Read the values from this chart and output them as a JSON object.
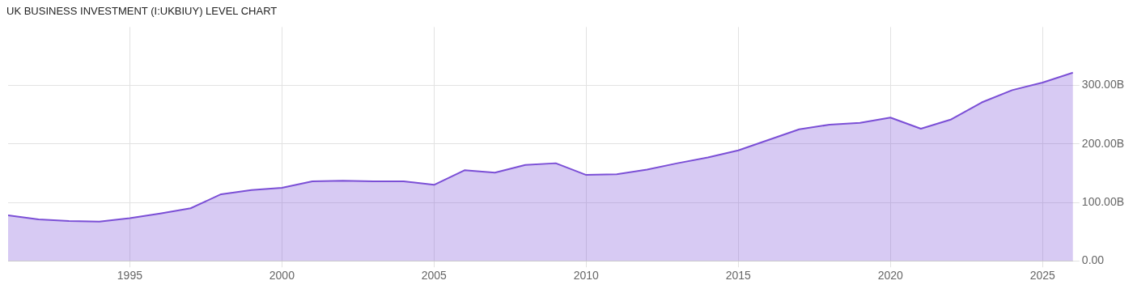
{
  "chart_data": {
    "type": "area",
    "title": "UK BUSINESS INVESTMENT (I:UKBIUY) LEVEL CHART",
    "x": [
      1991,
      1992,
      1993,
      1994,
      1995,
      1996,
      1997,
      1998,
      1999,
      2000,
      2001,
      2002,
      2003,
      2004,
      2005,
      2006,
      2007,
      2008,
      2009,
      2010,
      2011,
      2012,
      2013,
      2014,
      2015,
      2016,
      2017,
      2018,
      2019,
      2020,
      2021,
      2022,
      2023,
      2024,
      2025,
      2026
    ],
    "series": [
      {
        "color": "#7b4fd6",
        "values": [
          78,
          71,
          68,
          67,
          73,
          81,
          90,
          114,
          121,
          125,
          136,
          137,
          136,
          136,
          130,
          155,
          151,
          164,
          167,
          147,
          148,
          156,
          167,
          177,
          189,
          207,
          225,
          233,
          236,
          245,
          226,
          242,
          271,
          292,
          305,
          322
        ]
      }
    ],
    "xlim": [
      1991,
      2026
    ],
    "xticks": [
      1995,
      2000,
      2005,
      2010,
      2015,
      2020,
      2025
    ],
    "ylim": [
      0,
      400
    ],
    "yticks": [
      {
        "value": 0,
        "label": "0.00"
      },
      {
        "value": 100,
        "label": "100.00B"
      },
      {
        "value": 200,
        "label": "200.00B"
      },
      {
        "value": 300,
        "label": "300.00B"
      }
    ],
    "grid": true,
    "marker": "none",
    "line_style": "solid"
  }
}
